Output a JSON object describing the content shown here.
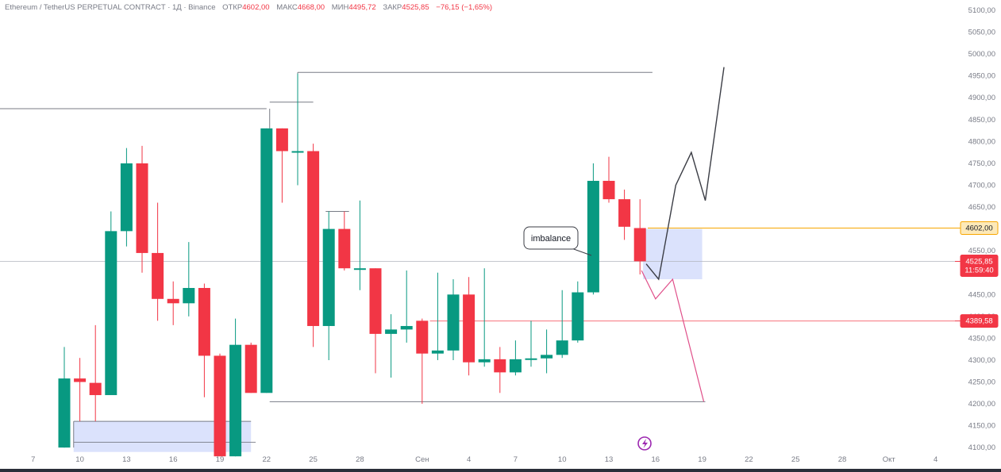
{
  "header": {
    "symbol": "Ethereum / TetherUS PERPETUAL CONTRACT · 1Д · Binance",
    "open_label": "ОТКР",
    "open_value": "4602,00",
    "high_label": "МАКС",
    "high_value": "4668,00",
    "low_label": "МИН",
    "low_value": "4495,72",
    "close_label": "ЗАКР",
    "close_value": "4525,85",
    "change": "−76,15 (−1,65%)"
  },
  "price_badges": {
    "level_high": "4602,00",
    "current_price": "4525,85",
    "countdown": "11:59:40",
    "level_low": "4389,58"
  },
  "annotation": {
    "text": "imbalance"
  },
  "colors": {
    "up": "#089981",
    "down": "#f23645",
    "orange_line": "#f7a600",
    "red_line": "#f23645",
    "pink_path": "#e0508a",
    "zone": "#c8d3fa"
  },
  "icons": {
    "replay": "lightning-circle-icon"
  },
  "chart_data": {
    "type": "candlestick",
    "y_ticks": [
      "5100,00",
      "5050,00",
      "5000,00",
      "4950,00",
      "4900,00",
      "4850,00",
      "4800,00",
      "4750,00",
      "4700,00",
      "4650,00",
      "4600,00",
      "4550,00",
      "4500,00",
      "4450,00",
      "4400,00",
      "4350,00",
      "4300,00",
      "4250,00",
      "4200,00",
      "4150,00",
      "4100,00"
    ],
    "y_tick_values": [
      5100,
      5050,
      5000,
      4950,
      4900,
      4850,
      4800,
      4750,
      4700,
      4650,
      4600,
      4550,
      4500,
      4450,
      4400,
      4350,
      4300,
      4250,
      4200,
      4150,
      4100
    ],
    "x_ticks": [
      {
        "label": "7",
        "day": -2
      },
      {
        "label": "10",
        "day": 1
      },
      {
        "label": "13",
        "day": 4
      },
      {
        "label": "16",
        "day": 7
      },
      {
        "label": "19",
        "day": 10
      },
      {
        "label": "22",
        "day": 13
      },
      {
        "label": "25",
        "day": 16
      },
      {
        "label": "28",
        "day": 19
      },
      {
        "label": "Сен",
        "day": 23
      },
      {
        "label": "4",
        "day": 26
      },
      {
        "label": "7",
        "day": 29
      },
      {
        "label": "10",
        "day": 32
      },
      {
        "label": "13",
        "day": 35
      },
      {
        "label": "16",
        "day": 38
      },
      {
        "label": "19",
        "day": 41
      },
      {
        "label": "22",
        "day": 44
      },
      {
        "label": "25",
        "day": 47
      },
      {
        "label": "28",
        "day": 50
      },
      {
        "label": "Окт",
        "day": 53
      },
      {
        "label": "4",
        "day": 56
      }
    ],
    "candles": [
      {
        "day": 0,
        "o": 4100,
        "h": 4330,
        "l": 4100,
        "c": 4258
      },
      {
        "day": 1,
        "o": 4258,
        "h": 4305,
        "l": 4160,
        "c": 4250
      },
      {
        "day": 2,
        "o": 4248,
        "h": 4380,
        "l": 4160,
        "c": 4220
      },
      {
        "day": 3,
        "o": 4220,
        "h": 4640,
        "l": 4220,
        "c": 4595
      },
      {
        "day": 4,
        "o": 4595,
        "h": 4785,
        "l": 4560,
        "c": 4750
      },
      {
        "day": 5,
        "o": 4750,
        "h": 4790,
        "l": 4500,
        "c": 4545
      },
      {
        "day": 6,
        "o": 4545,
        "h": 4660,
        "l": 4390,
        "c": 4440
      },
      {
        "day": 7,
        "o": 4440,
        "h": 4480,
        "l": 4380,
        "c": 4430
      },
      {
        "day": 8,
        "o": 4430,
        "h": 4570,
        "l": 4400,
        "c": 4465
      },
      {
        "day": 9,
        "o": 4465,
        "h": 4475,
        "l": 4215,
        "c": 4310
      },
      {
        "day": 10,
        "o": 4310,
        "h": 4315,
        "l": 4080,
        "c": 4080
      },
      {
        "day": 11,
        "o": 4080,
        "h": 4395,
        "l": 4080,
        "c": 4335
      },
      {
        "day": 12,
        "o": 4335,
        "h": 4340,
        "l": 4225,
        "c": 4225
      },
      {
        "day": 13,
        "o": 4225,
        "h": 4830,
        "l": 4225,
        "c": 4830
      },
      {
        "day": 14,
        "o": 4830,
        "h": 4830,
        "l": 4660,
        "c": 4778
      },
      {
        "day": 15,
        "o": 4778,
        "h": 4955,
        "l": 4700,
        "c": 4778
      },
      {
        "day": 16,
        "o": 4778,
        "h": 4795,
        "l": 4330,
        "c": 4378
      },
      {
        "day": 17,
        "o": 4378,
        "h": 4640,
        "l": 4300,
        "c": 4600
      },
      {
        "day": 18,
        "o": 4600,
        "h": 4640,
        "l": 4505,
        "c": 4510
      },
      {
        "day": 19,
        "o": 4510,
        "h": 4665,
        "l": 4460,
        "c": 4510
      },
      {
        "day": 20,
        "o": 4510,
        "h": 4510,
        "l": 4270,
        "c": 4360
      },
      {
        "day": 21,
        "o": 4360,
        "h": 4405,
        "l": 4260,
        "c": 4370
      },
      {
        "day": 22,
        "o": 4370,
        "h": 4505,
        "l": 4340,
        "c": 4378
      },
      {
        "day": 23,
        "o": 4390,
        "h": 4395,
        "l": 4200,
        "c": 4315
      },
      {
        "day": 24,
        "o": 4315,
        "h": 4500,
        "l": 4300,
        "c": 4322
      },
      {
        "day": 25,
        "o": 4322,
        "h": 4485,
        "l": 4300,
        "c": 4450
      },
      {
        "day": 26,
        "o": 4450,
        "h": 4490,
        "l": 4265,
        "c": 4295
      },
      {
        "day": 27,
        "o": 4295,
        "h": 4510,
        "l": 4285,
        "c": 4302
      },
      {
        "day": 28,
        "o": 4302,
        "h": 4330,
        "l": 4225,
        "c": 4272
      },
      {
        "day": 29,
        "o": 4272,
        "h": 4345,
        "l": 4265,
        "c": 4302
      },
      {
        "day": 30,
        "o": 4302,
        "h": 4390,
        "l": 4285,
        "c": 4304
      },
      {
        "day": 31,
        "o": 4304,
        "h": 4370,
        "l": 4270,
        "c": 4312
      },
      {
        "day": 32,
        "o": 4312,
        "h": 4460,
        "l": 4305,
        "c": 4345
      },
      {
        "day": 33,
        "o": 4345,
        "h": 4480,
        "l": 4340,
        "c": 4455
      },
      {
        "day": 34,
        "o": 4455,
        "h": 4750,
        "l": 4450,
        "c": 4710
      },
      {
        "day": 35,
        "o": 4710,
        "h": 4765,
        "l": 4660,
        "c": 4668
      },
      {
        "day": 36,
        "o": 4668,
        "h": 4690,
        "l": 4575,
        "c": 4605
      },
      {
        "day": 37,
        "o": 4602,
        "h": 4668,
        "l": 4496,
        "c": 4526
      }
    ],
    "levels": {
      "orange": 4602,
      "red": 4389.58,
      "current": 4525.85
    },
    "horizontal_lines": [
      {
        "from_day": -8,
        "to_day": 13,
        "price": 4875
      },
      {
        "from_day": 15,
        "to_day": 37.8,
        "price": 4958
      },
      {
        "from_day": 13.2,
        "to_day": 41.2,
        "price": 4205
      }
    ],
    "zones": [
      {
        "from_day": 37.2,
        "to_day": 41,
        "top": 4600,
        "bottom": 4485
      },
      {
        "from_day": 0.6,
        "to_day": 12,
        "top": 4160,
        "bottom": 4090
      }
    ],
    "projection_black": [
      [
        37.4,
        4520
      ],
      [
        38.2,
        4485
      ],
      [
        39.3,
        4700
      ],
      [
        40.3,
        4775
      ],
      [
        41.2,
        4665
      ],
      [
        42.4,
        4970
      ]
    ],
    "projection_pink": [
      [
        37.1,
        4505
      ],
      [
        38,
        4440
      ],
      [
        39.1,
        4485
      ],
      [
        41.1,
        4205
      ]
    ]
  }
}
